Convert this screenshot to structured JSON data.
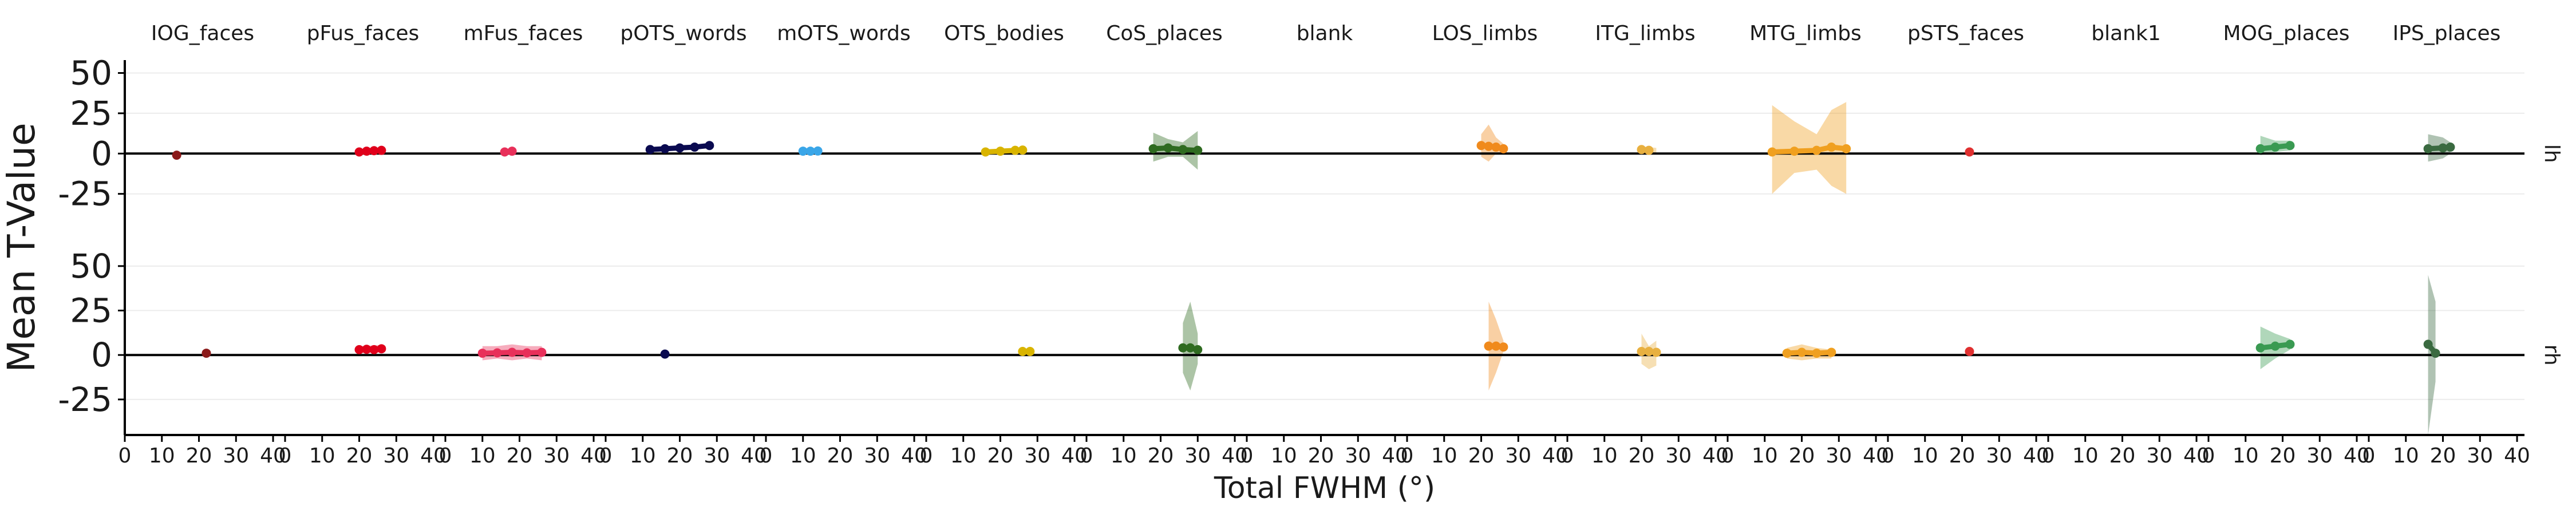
{
  "chart_data": {
    "type": "line",
    "xlabel": "Total FWHM (°)",
    "ylabel": "Mean T-Value",
    "x_ticks": [
      0,
      10,
      20,
      30,
      40
    ],
    "x_tick_labels": [
      "0",
      "10",
      "20",
      "30",
      "40"
    ],
    "xlim": [
      0,
      42
    ],
    "y_ticks": [
      -25,
      0,
      25,
      50
    ],
    "y_tick_labels": [
      "-25",
      "0",
      "25",
      "50"
    ],
    "ylim": [
      -45,
      58
    ],
    "hemispheres": [
      "lh",
      "rh"
    ],
    "grid": true,
    "panels": [
      {
        "name": "IOG_faces",
        "color": "#8b1a1a",
        "lh": {
          "points": [
            [
              14,
              -1
            ]
          ],
          "ribbon": []
        },
        "rh": {
          "points": [
            [
              22,
              1
            ]
          ],
          "ribbon": []
        }
      },
      {
        "name": "pFus_faces",
        "color": "#e0001b",
        "lh": {
          "points": [
            [
              20,
              1
            ],
            [
              22,
              1.5
            ],
            [
              24,
              1.8
            ],
            [
              26,
              2
            ]
          ],
          "ribbon": [
            [
              20,
              0.3,
              1.7
            ],
            [
              26,
              1.2,
              2.8
            ]
          ]
        },
        "rh": {
          "points": [
            [
              20,
              3
            ],
            [
              22,
              3.2
            ],
            [
              24,
              3
            ],
            [
              26,
              3.5
            ]
          ],
          "ribbon": [
            [
              20,
              1,
              5
            ],
            [
              26,
              1.5,
              5.5
            ]
          ]
        }
      },
      {
        "name": "mFus_faces",
        "color": "#e8305a",
        "lh": {
          "points": [
            [
              16,
              1
            ],
            [
              18,
              1.5
            ]
          ],
          "ribbon": []
        },
        "rh": {
          "points": [
            [
              10,
              1
            ],
            [
              14,
              1.2
            ],
            [
              18,
              1.5
            ],
            [
              22,
              1.2
            ],
            [
              26,
              1.5
            ]
          ],
          "ribbon": [
            [
              10,
              -3,
              5
            ],
            [
              14,
              -2,
              5
            ],
            [
              18,
              -3,
              6
            ],
            [
              22,
              -2,
              5
            ],
            [
              26,
              -3,
              5
            ]
          ]
        }
      },
      {
        "name": "pOTS_words",
        "color": "#0a0a50",
        "lh": {
          "points": [
            [
              12,
              2.5
            ],
            [
              16,
              3
            ],
            [
              20,
              3.5
            ],
            [
              24,
              4
            ],
            [
              28,
              5
            ]
          ],
          "ribbon": [
            [
              12,
              1.8,
              3.2
            ],
            [
              28,
              4.2,
              5.8
            ]
          ]
        },
        "rh": {
          "points": [
            [
              16,
              0.5
            ]
          ],
          "ribbon": []
        }
      },
      {
        "name": "mOTS_words",
        "color": "#3aa6e8",
        "lh": {
          "points": [
            [
              10,
              1.5
            ],
            [
              12,
              1.5
            ],
            [
              14,
              1.6
            ]
          ],
          "ribbon": []
        },
        "rh": {
          "points": [],
          "ribbon": []
        }
      },
      {
        "name": "OTS_bodies",
        "color": "#d9b400",
        "lh": {
          "points": [
            [
              16,
              1
            ],
            [
              20,
              1.5
            ],
            [
              24,
              2
            ],
            [
              26,
              2.2
            ]
          ],
          "ribbon": [
            [
              16,
              0,
              2
            ],
            [
              26,
              1,
              3.5
            ]
          ]
        },
        "rh": {
          "points": [
            [
              26,
              2
            ],
            [
              28,
              2
            ]
          ],
          "ribbon": []
        }
      },
      {
        "name": "CoS_places",
        "color": "#2f6b20",
        "lh": {
          "points": [
            [
              18,
              3
            ],
            [
              22,
              3.5
            ],
            [
              26,
              2.5
            ],
            [
              30,
              2
            ]
          ],
          "ribbon": [
            [
              18,
              -5,
              13
            ],
            [
              22,
              -2,
              9
            ],
            [
              26,
              -2,
              7
            ],
            [
              30,
              -10,
              14
            ]
          ]
        },
        "rh": {
          "points": [
            [
              26,
              4
            ],
            [
              28,
              4
            ],
            [
              30,
              3
            ]
          ],
          "ribbon": [
            [
              26,
              -10,
              18
            ],
            [
              28,
              -20,
              30
            ],
            [
              30,
              -5,
              12
            ]
          ]
        }
      },
      {
        "name": "blank",
        "color": "#888888",
        "lh": {
          "points": [],
          "ribbon": []
        },
        "rh": {
          "points": [],
          "ribbon": []
        }
      },
      {
        "name": "LOS_limbs",
        "color": "#f08a1c",
        "lh": {
          "points": [
            [
              20,
              5
            ],
            [
              22,
              4.5
            ],
            [
              24,
              4
            ],
            [
              26,
              3
            ]
          ],
          "ribbon": [
            [
              20,
              -2,
              12
            ],
            [
              22,
              -5,
              18
            ],
            [
              24,
              0,
              10
            ],
            [
              26,
              1,
              6
            ]
          ]
        },
        "rh": {
          "points": [
            [
              22,
              5
            ],
            [
              24,
              5
            ],
            [
              26,
              4.5
            ]
          ],
          "ribbon": [
            [
              22,
              -20,
              30
            ],
            [
              24,
              -10,
              20
            ],
            [
              26,
              2,
              8
            ]
          ]
        }
      },
      {
        "name": "ITG_limbs",
        "color": "#e8b040",
        "lh": {
          "points": [
            [
              20,
              2.5
            ],
            [
              22,
              2
            ]
          ],
          "ribbon": [
            [
              20,
              0.5,
              4.5
            ],
            [
              24,
              0.5,
              3.5
            ]
          ]
        },
        "rh": {
          "points": [
            [
              20,
              2
            ],
            [
              22,
              2
            ],
            [
              24,
              1.5
            ]
          ],
          "ribbon": [
            [
              20,
              -5,
              12
            ],
            [
              22,
              -8,
              5
            ],
            [
              24,
              -6,
              8
            ]
          ]
        }
      },
      {
        "name": "MTG_limbs",
        "color": "#f0a020",
        "lh": {
          "points": [
            [
              12,
              1
            ],
            [
              18,
              1.5
            ],
            [
              24,
              2
            ],
            [
              28,
              4
            ],
            [
              32,
              3
            ]
          ],
          "ribbon": [
            [
              12,
              -25,
              30
            ],
            [
              18,
              -12,
              20
            ],
            [
              24,
              -10,
              12
            ],
            [
              28,
              -20,
              27
            ],
            [
              32,
              -25,
              32
            ]
          ]
        },
        "rh": {
          "points": [
            [
              16,
              1
            ],
            [
              20,
              1.5
            ],
            [
              24,
              1
            ],
            [
              28,
              1.5
            ]
          ],
          "ribbon": [
            [
              16,
              -2,
              4
            ],
            [
              20,
              -3,
              6
            ],
            [
              24,
              -2,
              4
            ],
            [
              28,
              -2,
              3
            ]
          ]
        }
      },
      {
        "name": "pSTS_faces",
        "color": "#e03030",
        "lh": {
          "points": [
            [
              22,
              1
            ]
          ],
          "ribbon": []
        },
        "rh": {
          "points": [
            [
              22,
              2
            ]
          ],
          "ribbon": []
        }
      },
      {
        "name": "blank1",
        "color": "#888888",
        "lh": {
          "points": [],
          "ribbon": []
        },
        "rh": {
          "points": [],
          "ribbon": []
        }
      },
      {
        "name": "MOG_places",
        "color": "#3a9a52",
        "lh": {
          "points": [
            [
              14,
              3
            ],
            [
              18,
              4
            ],
            [
              22,
              5
            ]
          ],
          "ribbon": [
            [
              14,
              -1,
              11
            ],
            [
              18,
              1,
              8
            ],
            [
              22,
              2,
              8
            ]
          ]
        },
        "rh": {
          "points": [
            [
              14,
              4
            ],
            [
              18,
              5
            ],
            [
              22,
              6
            ]
          ],
          "ribbon": [
            [
              14,
              -8,
              16
            ],
            [
              18,
              -2,
              12
            ],
            [
              22,
              3,
              9
            ]
          ]
        }
      },
      {
        "name": "IPS_places",
        "color": "#3a6a40",
        "lh": {
          "points": [
            [
              16,
              3
            ],
            [
              20,
              3.5
            ],
            [
              22,
              4
            ]
          ],
          "ribbon": [
            [
              16,
              -5,
              12
            ],
            [
              20,
              -3,
              10
            ],
            [
              22,
              0,
              7
            ]
          ]
        },
        "rh": {
          "points": [
            [
              16,
              6
            ],
            [
              18,
              1
            ]
          ],
          "ribbon": [
            [
              16,
              -45,
              45
            ],
            [
              18,
              -15,
              30
            ]
          ]
        }
      }
    ]
  }
}
